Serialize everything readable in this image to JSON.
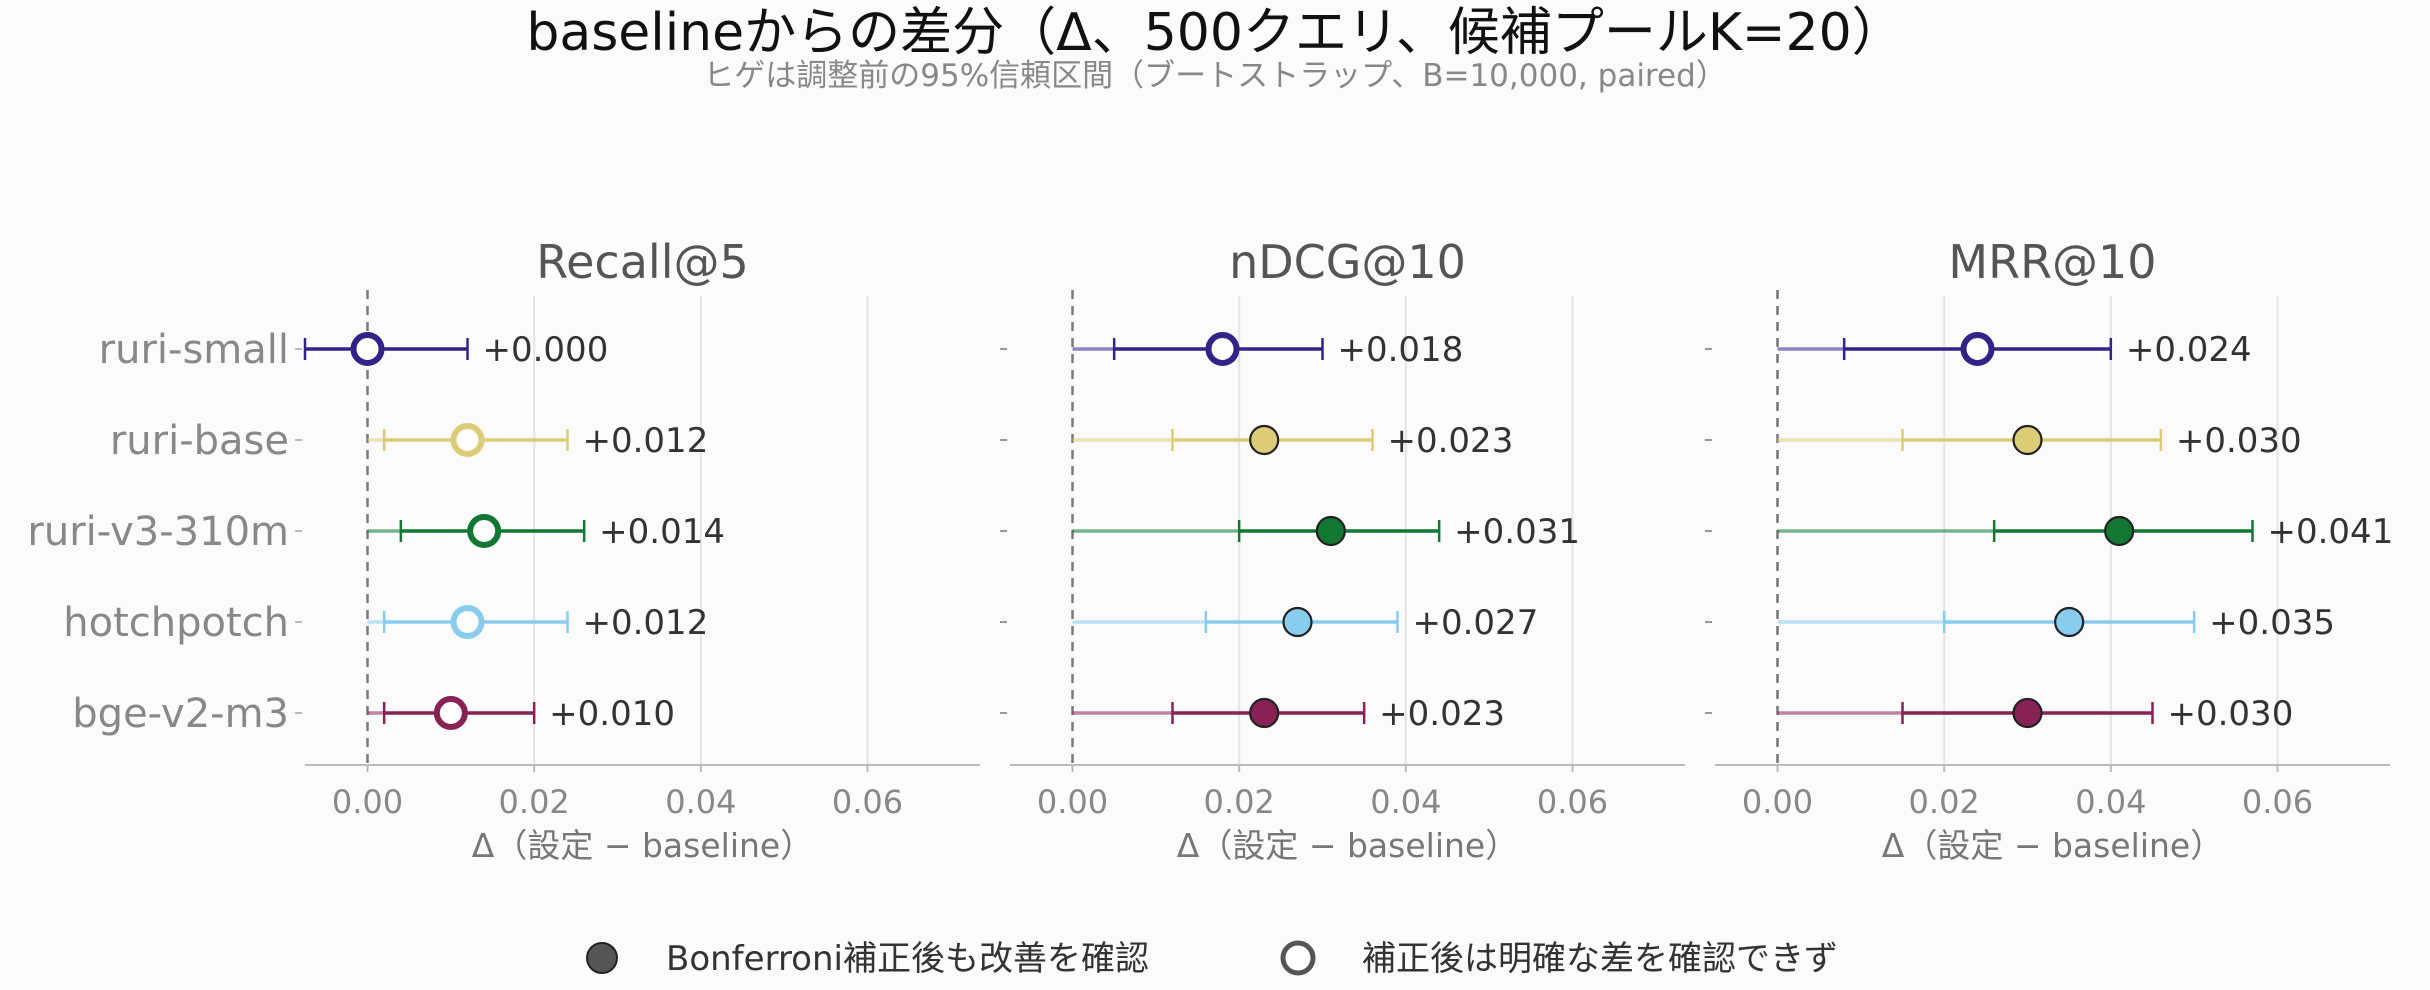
{
  "title": "baselineからの差分（Δ、500クエリ、候補プールK=20）",
  "subtitle": "ヒゲは調整前の95%信頼区間（ブートストラップ、B=10,000, paired）",
  "legend": {
    "filled_label": "Bonferroni補正後も改善を確認",
    "hollow_label": "補正後は明確な差を確認できず"
  },
  "chart_data": [
    {
      "type": "scatter",
      "subtype": "forest-plot",
      "title": "Recall@5",
      "xlabel": "Δ（設定 − baseline）",
      "xlim": [
        -0.0075,
        0.0735
      ],
      "xticks": [
        0.0,
        0.02,
        0.04,
        0.06
      ],
      "xtick_labels": [
        "0.00",
        "0.02",
        "0.04",
        "0.06"
      ],
      "show_ylabels": true,
      "reference_line_x": 0,
      "grid": "vertical",
      "points": [
        {
          "model": "ruri-small",
          "value": 0.0,
          "ci_low": -0.0075,
          "ci_high": 0.012,
          "inner_low": -0.0075,
          "significant": false,
          "label": "+0.000",
          "color": "#332288"
        },
        {
          "model": "ruri-base",
          "value": 0.012,
          "ci_low": 0.0,
          "ci_high": 0.024,
          "inner_low": 0.002,
          "significant": false,
          "label": "+0.012",
          "color": "#DDCC77"
        },
        {
          "model": "ruri-v3-310m",
          "value": 0.014,
          "ci_low": 0.0,
          "ci_high": 0.026,
          "inner_low": 0.004,
          "significant": false,
          "label": "+0.014",
          "color": "#117733"
        },
        {
          "model": "hotchpotch",
          "value": 0.012,
          "ci_low": 0.0,
          "ci_high": 0.024,
          "inner_low": 0.002,
          "significant": false,
          "label": "+0.012",
          "color": "#88CCEE"
        },
        {
          "model": "bge-v2-m3",
          "value": 0.01,
          "ci_low": 0.0,
          "ci_high": 0.02,
          "inner_low": 0.002,
          "significant": false,
          "label": "+0.010",
          "color": "#882255"
        }
      ]
    },
    {
      "type": "scatter",
      "subtype": "forest-plot",
      "title": "nDCG@10",
      "xlabel": "Δ（設定 − baseline）",
      "xlim": [
        -0.0075,
        0.0735
      ],
      "xticks": [
        0.0,
        0.02,
        0.04,
        0.06
      ],
      "xtick_labels": [
        "0.00",
        "0.02",
        "0.04",
        "0.06"
      ],
      "show_ylabels": false,
      "reference_line_x": 0,
      "grid": "vertical",
      "points": [
        {
          "model": "ruri-small",
          "value": 0.018,
          "ci_low": 0.0,
          "ci_high": 0.03,
          "inner_low": 0.005,
          "significant": false,
          "label": "+0.018",
          "color": "#332288"
        },
        {
          "model": "ruri-base",
          "value": 0.023,
          "ci_low": 0.0,
          "ci_high": 0.036,
          "inner_low": 0.012,
          "significant": true,
          "label": "+0.023",
          "color": "#DDCC77"
        },
        {
          "model": "ruri-v3-310m",
          "value": 0.031,
          "ci_low": 0.0,
          "ci_high": 0.044,
          "inner_low": 0.02,
          "significant": true,
          "label": "+0.031",
          "color": "#117733"
        },
        {
          "model": "hotchpotch",
          "value": 0.027,
          "ci_low": 0.0,
          "ci_high": 0.039,
          "inner_low": 0.016,
          "significant": true,
          "label": "+0.027",
          "color": "#88CCEE"
        },
        {
          "model": "bge-v2-m3",
          "value": 0.023,
          "ci_low": 0.0,
          "ci_high": 0.035,
          "inner_low": 0.012,
          "significant": true,
          "label": "+0.023",
          "color": "#882255"
        }
      ]
    },
    {
      "type": "scatter",
      "subtype": "forest-plot",
      "title": "MRR@10",
      "xlabel": "Δ（設定 − baseline）",
      "xlim": [
        -0.0075,
        0.0735
      ],
      "xticks": [
        0.0,
        0.02,
        0.04,
        0.06
      ],
      "xtick_labels": [
        "0.00",
        "0.02",
        "0.04",
        "0.06"
      ],
      "show_ylabels": false,
      "reference_line_x": 0,
      "grid": "vertical",
      "points": [
        {
          "model": "ruri-small",
          "value": 0.024,
          "ci_low": 0.0,
          "ci_high": 0.04,
          "inner_low": 0.008,
          "significant": false,
          "label": "+0.024",
          "color": "#332288"
        },
        {
          "model": "ruri-base",
          "value": 0.03,
          "ci_low": 0.0,
          "ci_high": 0.046,
          "inner_low": 0.015,
          "significant": true,
          "label": "+0.030",
          "color": "#DDCC77"
        },
        {
          "model": "ruri-v3-310m",
          "value": 0.041,
          "ci_low": 0.0,
          "ci_high": 0.057,
          "inner_low": 0.026,
          "significant": true,
          "label": "+0.041",
          "color": "#117733"
        },
        {
          "model": "hotchpotch",
          "value": 0.035,
          "ci_low": 0.0,
          "ci_high": 0.05,
          "inner_low": 0.02,
          "significant": true,
          "label": "+0.035",
          "color": "#88CCEE"
        },
        {
          "model": "bge-v2-m3",
          "value": 0.03,
          "ci_low": 0.0,
          "ci_high": 0.045,
          "inner_low": 0.015,
          "significant": true,
          "label": "+0.030",
          "color": "#882255"
        }
      ]
    }
  ]
}
